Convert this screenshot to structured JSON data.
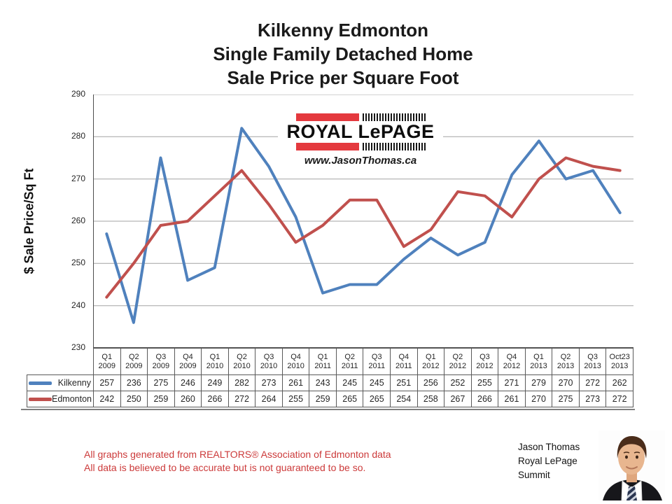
{
  "title": {
    "lines": [
      "Kilkenny Edmonton",
      "Single Family Detached Home",
      "Sale Price per Square Foot"
    ]
  },
  "y_axis": {
    "title": "$ Sale Price/Sq Ft",
    "ticks": [
      290,
      280,
      270,
      260,
      250,
      240,
      230
    ]
  },
  "logo": {
    "brand": "ROYAL LePAGE",
    "website": "www.JasonThomas.ca"
  },
  "chart_data": {
    "type": "line",
    "title": "Kilkenny Edmonton Single Family Detached Home Sale Price per Square Foot",
    "ylabel": "$ Sale Price/Sq Ft",
    "ylim": [
      230,
      290
    ],
    "ytick_step": 10,
    "grid": true,
    "legend_position": "table-left",
    "categories": [
      "Q1 2009",
      "Q2 2009",
      "Q3 2009",
      "Q4 2009",
      "Q1 2010",
      "Q2 2010",
      "Q3 2010",
      "Q4 2010",
      "Q1 2011",
      "Q2 2011",
      "Q3 2011",
      "Q4 2011",
      "Q1 2012",
      "Q2 2012",
      "Q3 2012",
      "Q4 2012",
      "Q1 2013",
      "Q2 2013",
      "Q3 2013",
      "Oct23 2013"
    ],
    "series": [
      {
        "name": "Kilkenny",
        "color": "#4F81BD",
        "values": [
          257,
          236,
          275,
          246,
          249,
          282,
          273,
          261,
          243,
          245,
          245,
          251,
          256,
          252,
          255,
          271,
          279,
          270,
          272,
          262
        ]
      },
      {
        "name": "Edmonton",
        "color": "#C0504D",
        "values": [
          242,
          250,
          259,
          260,
          266,
          272,
          264,
          255,
          259,
          265,
          265,
          254,
          258,
          267,
          266,
          261,
          270,
          275,
          273,
          272
        ]
      }
    ]
  },
  "footer": {
    "disclaimer": [
      "All graphs generated from REALTORS® Association of Edmonton data",
      "All data is believed to be accurate but is not guaranteed to be so."
    ],
    "agent": {
      "line1": "Jason Thomas",
      "line2": "Royal LePage",
      "line3": "Summit"
    }
  },
  "colors": {
    "kilkenny": "#4F81BD",
    "edmonton": "#C0504D",
    "gridline": "#A3A3A3",
    "axis": "#4D4D4D",
    "table_border": "#595959",
    "disclaimer_red": "#CC3A3A",
    "logo_red": "#E4393E"
  }
}
